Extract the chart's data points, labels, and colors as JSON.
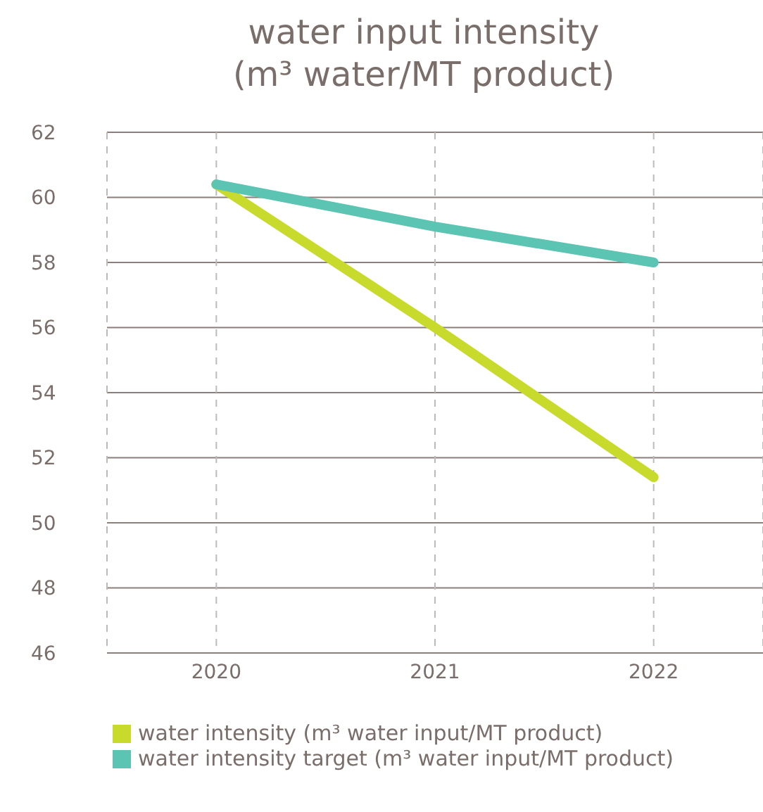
{
  "chart_data": {
    "type": "line",
    "title": "water input intensity",
    "subtitle": "(m³ water/MT product)",
    "categories": [
      "2020",
      "2021",
      "2022"
    ],
    "series": [
      {
        "name": "water intensity (m³ water input/MT product)",
        "color": "#c8da2b",
        "values": [
          60.4,
          56.0,
          51.4
        ]
      },
      {
        "name": "water intensity target (m³ water input/MT product)",
        "color": "#5bc4b3",
        "values": [
          60.4,
          59.1,
          58.0
        ]
      }
    ],
    "ylim": [
      46,
      62
    ],
    "yticks": [
      46,
      48,
      50,
      52,
      54,
      56,
      58,
      60,
      62
    ],
    "grid": true,
    "legend": "bottom",
    "marker": "none",
    "line_style": "solid"
  }
}
